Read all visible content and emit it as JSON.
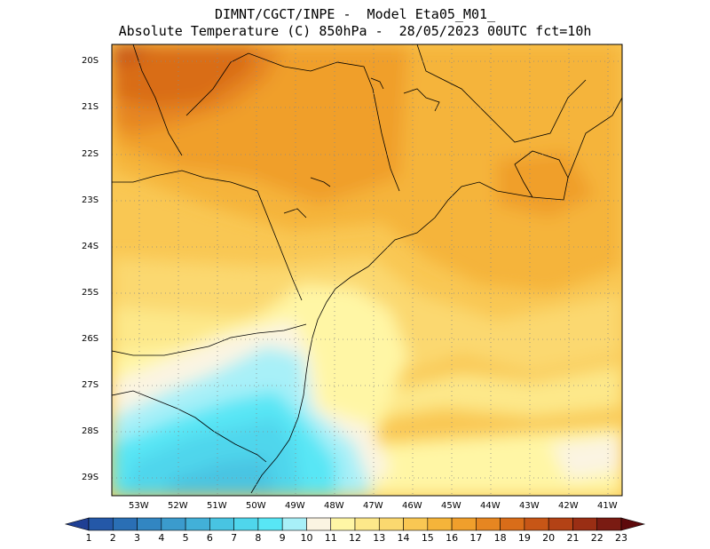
{
  "header": {
    "line1": "DIMNT/CGCT/INPE -  Model Eta05_M01_",
    "line2": "Absolute Temperature (C) 850hPa -  28/05/2023 00UTC fct=10h"
  },
  "map": {
    "lat_labels": [
      "20S",
      "21S",
      "22S",
      "23S",
      "24S",
      "25S",
      "26S",
      "27S",
      "28S",
      "29S"
    ],
    "lon_labels": [
      "53W",
      "52W",
      "51W",
      "50W",
      "49W",
      "48W",
      "47W",
      "46W",
      "45W",
      "44W",
      "43W",
      "42W",
      "41W"
    ]
  },
  "colorbar": {
    "labels": [
      "1",
      "2",
      "3",
      "4",
      "5",
      "6",
      "7",
      "8",
      "9",
      "10",
      "11",
      "12",
      "13",
      "14",
      "15",
      "16",
      "17",
      "18",
      "19",
      "20",
      "21",
      "22",
      "23"
    ],
    "colors": [
      "#1f3f94",
      "#2458a8",
      "#2a6fb5",
      "#3286c2",
      "#3b9bcd",
      "#42b0d8",
      "#48c4e2",
      "#4fd6ec",
      "#58e6f5",
      "#a8f0f8",
      "#fbf4e2",
      "#fff6a5",
      "#fde88a",
      "#fbd86f",
      "#f9c753",
      "#f5b43a",
      "#f09f2c",
      "#e68621",
      "#d96d19",
      "#c75616",
      "#b34215",
      "#9a2e14",
      "#7a1b12",
      "#5e0a0c"
    ]
  }
}
